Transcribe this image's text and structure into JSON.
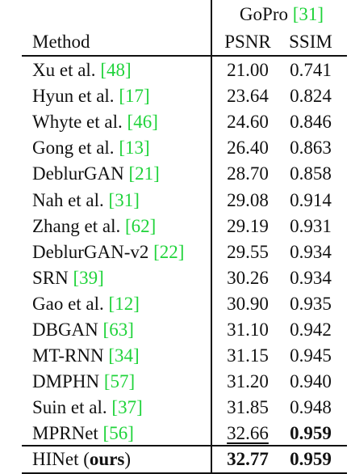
{
  "table": {
    "header": {
      "group": "GoPro",
      "group_cite": "31",
      "method": "Method",
      "psnr": "PSNR",
      "ssim": "SSIM"
    },
    "rows": [
      {
        "name": "Xu et al.",
        "cite": "48",
        "psnr": "21.00",
        "ssim": "0.741"
      },
      {
        "name": "Hyun et al.",
        "cite": "17",
        "psnr": "23.64",
        "ssim": "0.824"
      },
      {
        "name": "Whyte et al.",
        "cite": "46",
        "psnr": "24.60",
        "ssim": "0.846"
      },
      {
        "name": "Gong et al.",
        "cite": "13",
        "psnr": "26.40",
        "ssim": "0.863"
      },
      {
        "name": "DeblurGAN",
        "cite": "21",
        "psnr": "28.70",
        "ssim": "0.858"
      },
      {
        "name": "Nah et al.",
        "cite": "31",
        "psnr": "29.08",
        "ssim": "0.914"
      },
      {
        "name": "Zhang et al.",
        "cite": "62",
        "psnr": "29.19",
        "ssim": "0.931"
      },
      {
        "name": "DeblurGAN-v2",
        "cite": "22",
        "psnr": "29.55",
        "ssim": "0.934"
      },
      {
        "name": "SRN",
        "cite": "39",
        "psnr": "30.26",
        "ssim": "0.934"
      },
      {
        "name": "Gao et al.",
        "cite": "12",
        "psnr": "30.90",
        "ssim": "0.935"
      },
      {
        "name": "DBGAN",
        "cite": "63",
        "psnr": "31.10",
        "ssim": "0.942"
      },
      {
        "name": "MT-RNN",
        "cite": "34",
        "psnr": "31.15",
        "ssim": "0.945"
      },
      {
        "name": "DMPHN",
        "cite": "57",
        "psnr": "31.20",
        "ssim": "0.940"
      },
      {
        "name": "Suin et al.",
        "cite": "37",
        "psnr": "31.85",
        "ssim": "0.948"
      },
      {
        "name": "MPRNet",
        "cite": "56",
        "psnr": "32.66",
        "ssim": "0.959"
      }
    ],
    "ours": {
      "name": "HINet",
      "tag": "ours",
      "psnr": "32.77",
      "ssim": "0.959"
    }
  }
}
